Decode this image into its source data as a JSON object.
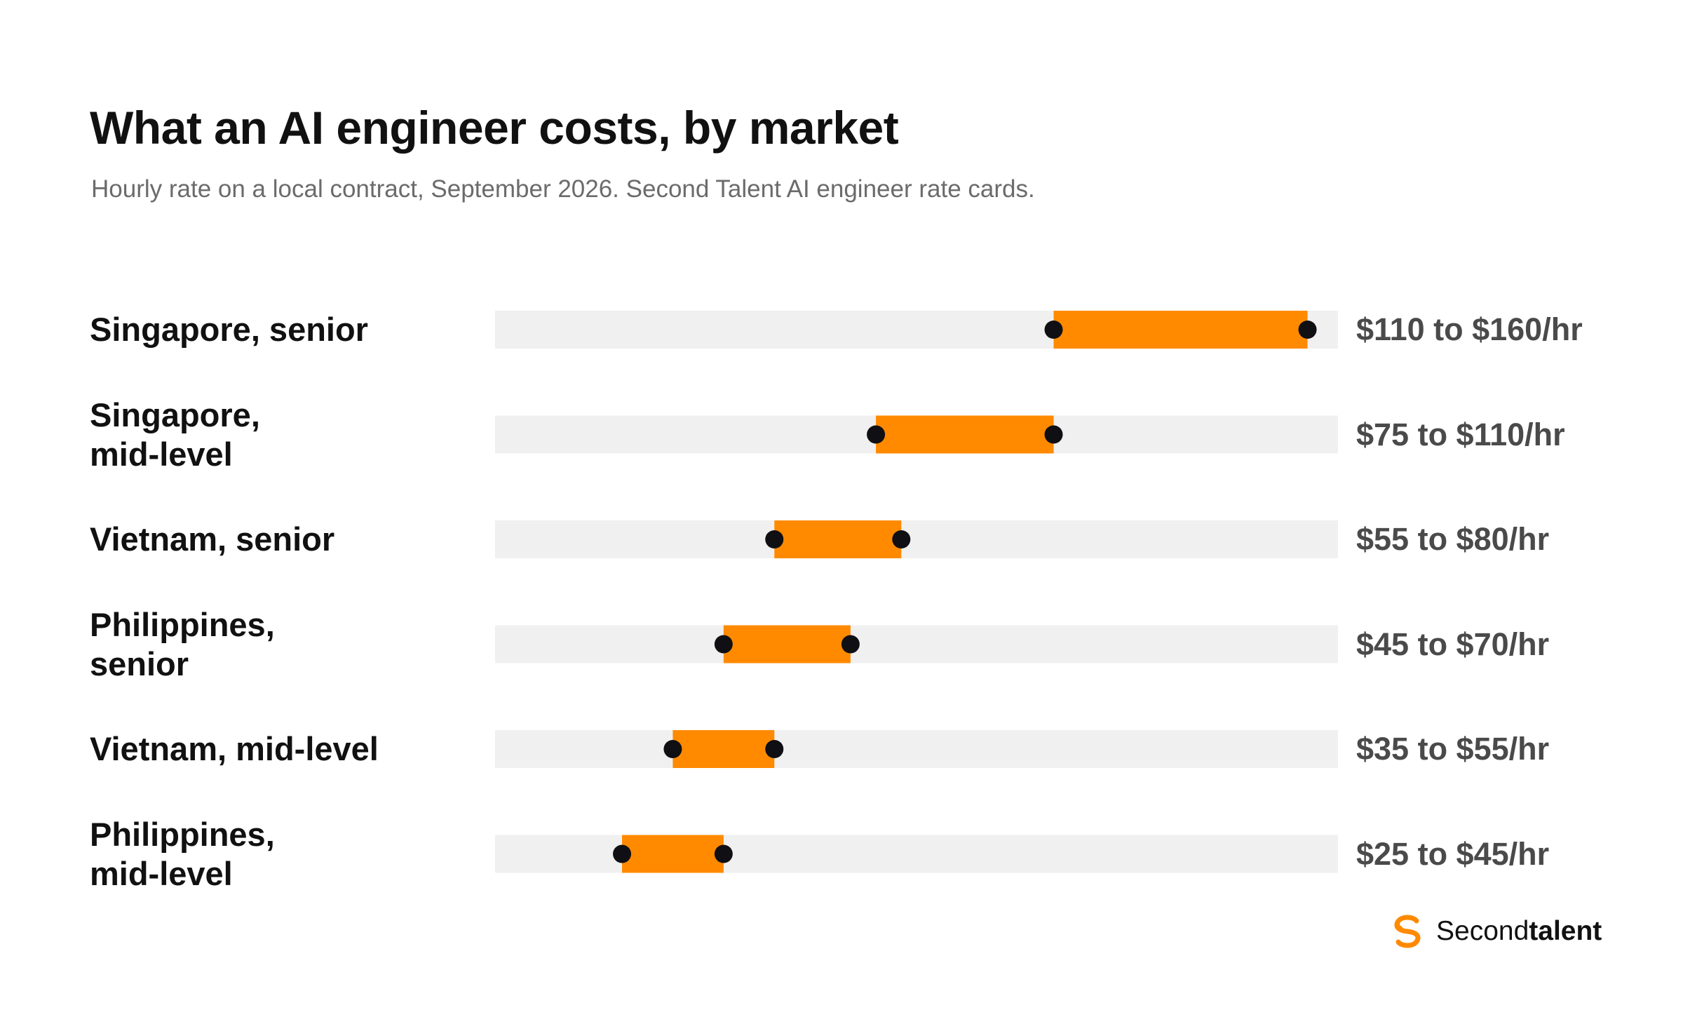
{
  "title": "What an AI engineer costs, by market",
  "subtitle": "Hourly rate on a local contract, September 2026. Second Talent AI engineer rate cards.",
  "brand": {
    "name_light": "Second",
    "name_bold": "talent",
    "icon": "second-talent-logo-icon",
    "color": "#ff8a00"
  },
  "colors": {
    "track": "#f0f0f0",
    "range": "#ff8a00",
    "dot": "#0f0f14"
  },
  "chart_data": {
    "type": "range-bar",
    "title": "What an AI engineer costs, by market",
    "subtitle": "Hourly rate on a local contract, September 2026. Second Talent AI engineer rate cards.",
    "xlim": [
      0,
      166
    ],
    "grid": false,
    "legend": "none",
    "rows": [
      {
        "label": "Singapore, senior",
        "low": 110,
        "high": 160,
        "value_label": "$110 to $160/hr"
      },
      {
        "label": "Singapore,\nmid-level",
        "low": 75,
        "high": 110,
        "value_label": "$75 to $110/hr"
      },
      {
        "label": "Vietnam, senior",
        "low": 55,
        "high": 80,
        "value_label": "$55 to $80/hr"
      },
      {
        "label": "Philippines,\nsenior",
        "low": 45,
        "high": 70,
        "value_label": "$45 to $70/hr"
      },
      {
        "label": "Vietnam, mid-level",
        "low": 35,
        "high": 55,
        "value_label": "$35 to $55/hr"
      },
      {
        "label": "Philippines,\nmid-level",
        "low": 25,
        "high": 45,
        "value_label": "$25 to $45/hr"
      }
    ]
  }
}
